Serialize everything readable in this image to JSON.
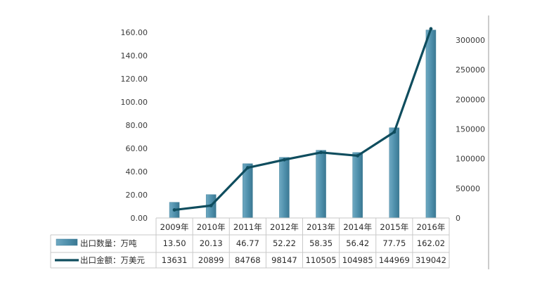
{
  "chart_data": {
    "type": "bar",
    "categories": [
      "2009年",
      "2010年",
      "2011年",
      "2012年",
      "2013年",
      "2014年",
      "2015年",
      "2016年"
    ],
    "series": [
      {
        "name": "出口数量：万吨",
        "type": "bar",
        "axis": "left",
        "values": [
          13.5,
          20.13,
          46.77,
          52.22,
          58.35,
          56.42,
          77.75,
          162.02
        ],
        "value_labels": [
          "13.50",
          "20.13",
          "46.77",
          "52.22",
          "58.35",
          "56.42",
          "77.75",
          "162.02"
        ],
        "color": "#4e8fab"
      },
      {
        "name": "出口金额：万美元",
        "type": "line",
        "axis": "right",
        "values": [
          13631,
          20899,
          84768,
          98147,
          110505,
          104985,
          144969,
          319042
        ],
        "value_labels": [
          "13631",
          "20899",
          "84768",
          "98147",
          "110505",
          "104985",
          "144969",
          "319042"
        ],
        "color": "#0f4d5e"
      }
    ],
    "y_left": {
      "ylim": [
        0,
        160
      ],
      "ticks": [
        "0.00",
        "20.00",
        "40.00",
        "60.00",
        "80.00",
        "100.00",
        "120.00",
        "140.00",
        "160.00"
      ]
    },
    "y_right": {
      "ylim": [
        0,
        300000
      ],
      "ticks": [
        "0",
        "50000",
        "100000",
        "150000",
        "200000",
        "250000",
        "300000"
      ]
    },
    "title": "",
    "xlabel": "",
    "grid": false,
    "legend": "data-table"
  }
}
